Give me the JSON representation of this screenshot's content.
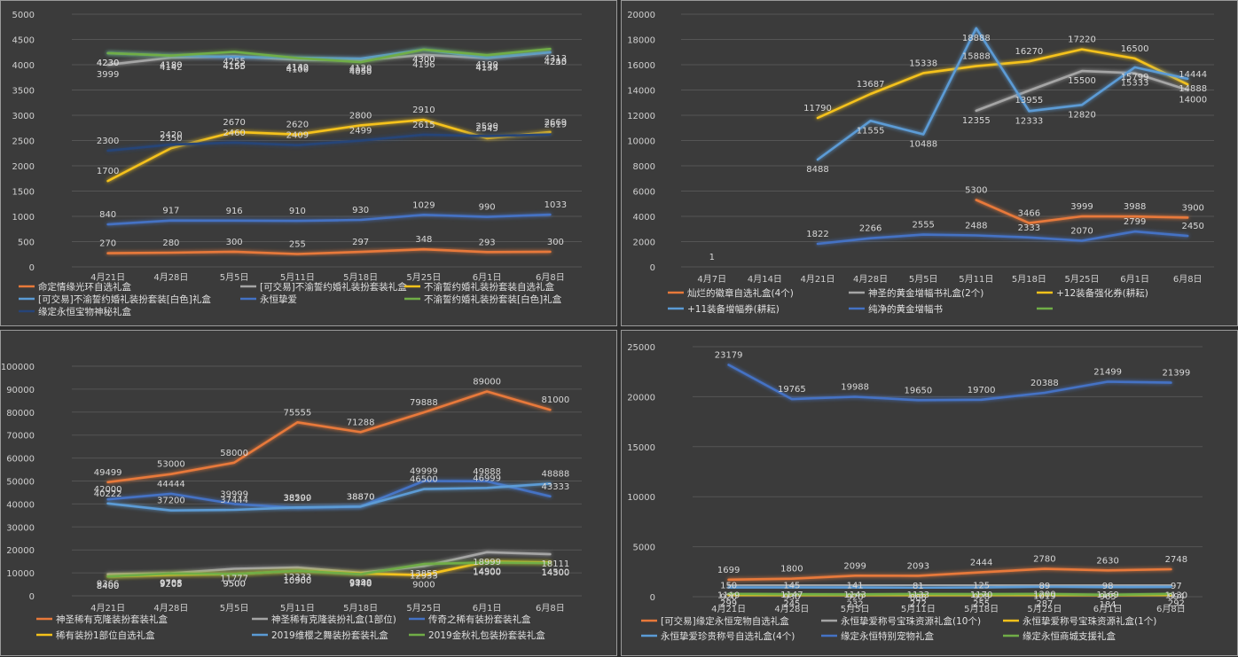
{
  "chart_data": [
    {
      "type": "line",
      "categories": [
        "4月21日",
        "4月28日",
        "5月5日",
        "5月11日",
        "5月18日",
        "5月25日",
        "6月1日",
        "6月8日"
      ],
      "ylim": [
        0,
        5000
      ],
      "yticks": [
        0,
        500,
        1000,
        1500,
        2000,
        2500,
        3000,
        3500,
        4000,
        4500,
        5000
      ],
      "legend_position": "bottom",
      "grid": true,
      "series": [
        {
          "name": "命定情缘光环自选礼盒",
          "color": "#e8793a",
          "values": [
            270,
            280,
            300,
            255,
            297,
            348,
            293,
            300
          ]
        },
        {
          "name": "[可交易]不渝誓约婚礼装扮套装礼盒",
          "color": "#a5a5a5",
          "values": [
            3999,
            4142,
            4166,
            4100,
            4088,
            4196,
            4133,
            4245
          ]
        },
        {
          "name": "不渝誓约婚礼装扮套装自选礼盒",
          "color": "#f5c21b",
          "values": [
            1700,
            2350,
            2670,
            2620,
            2800,
            2910,
            2545,
            2669
          ]
        },
        {
          "name": "[可交易]不渝誓约婚礼装扮套装[白色]礼盒",
          "color": "#5b9bd5",
          "values": [
            4230,
            4180,
            4155,
            4140,
            4120,
            4300,
            4144,
            4250
          ]
        },
        {
          "name": "永恒挚爱",
          "color": "#4472c4",
          "values": [
            840,
            917,
            916,
            910,
            930,
            1029,
            990,
            1033
          ]
        },
        {
          "name": "不渝誓约婚礼装扮套装[白色]礼盒",
          "color": "#70ad47",
          "values": [
            4230,
            4180,
            4255,
            4132,
            4050,
            4300,
            4190,
            4313
          ]
        },
        {
          "name": "缘定永恒宝物神秘礼盒",
          "color": "#264478",
          "values": [
            2300,
            2420,
            2460,
            2409,
            2499,
            2615,
            2590,
            2619
          ]
        }
      ]
    },
    {
      "type": "line",
      "categories": [
        "4月7日",
        "4月14日",
        "4月21日",
        "4月28日",
        "5月5日",
        "5月11日",
        "5月18日",
        "5月25日",
        "6月1日",
        "6月8日"
      ],
      "ylim": [
        0,
        20000
      ],
      "yticks": [
        0,
        2000,
        4000,
        6000,
        8000,
        10000,
        12000,
        14000,
        16000,
        18000,
        20000
      ],
      "legend_position": "bottom",
      "grid": true,
      "series": [
        {
          "name": "灿烂的徽章自选礼盒(4个)",
          "color": "#e8793a",
          "values": [
            null,
            null,
            null,
            null,
            null,
            5300,
            3466,
            3999,
            3988,
            3900
          ]
        },
        {
          "name": "神圣的黄金增幅书礼盒(2个)",
          "color": "#a5a5a5",
          "values": [
            null,
            null,
            null,
            null,
            null,
            12355,
            13955,
            15500,
            15333,
            14000
          ]
        },
        {
          "name": "+12装备强化券(耕耘)",
          "color": "#f5c21b",
          "values": [
            null,
            null,
            11790,
            13687,
            15338,
            15888,
            16270,
            17220,
            16500,
            14444
          ]
        },
        {
          "name": "+11装备增幅券(耕耘)",
          "color": "#5b9bd5",
          "values": [
            null,
            null,
            8488,
            11555,
            10488,
            18888,
            12333,
            12820,
            15799,
            14888
          ]
        },
        {
          "name": "纯净的黄金增幅书",
          "color": "#4472c4",
          "values": [
            1,
            null,
            1822,
            2266,
            2555,
            2488,
            2333,
            2070,
            2799,
            2450
          ]
        },
        {
          "name": "",
          "color": "#70ad47",
          "values": [
            null,
            null,
            null,
            null,
            null,
            null,
            null,
            null,
            null,
            null
          ]
        }
      ]
    },
    {
      "type": "line",
      "categories": [
        "4月21日",
        "4月28日",
        "5月5日",
        "5月11日",
        "5月18日",
        "5月25日",
        "6月1日",
        "6月8日"
      ],
      "ylim": [
        0,
        100000
      ],
      "yticks": [
        0,
        10000,
        20000,
        30000,
        40000,
        50000,
        60000,
        70000,
        80000,
        90000,
        100000
      ],
      "legend_position": "bottom",
      "grid": true,
      "series": [
        {
          "name": "神圣稀有克隆装扮套装礼盒",
          "color": "#e8793a",
          "values": [
            49499,
            53000,
            58000,
            75555,
            71288,
            79888,
            89000,
            81000
          ]
        },
        {
          "name": "神圣稀有克隆装扮礼盒(1部位)",
          "color": "#a5a5a5",
          "values": [
            9366,
            9788,
            11777,
            12333,
            9990,
            12933,
            18999,
            18111
          ]
        },
        {
          "name": "传奇之稀有装扮套装礼盒",
          "color": "#4472c4",
          "values": [
            42000,
            44444,
            39999,
            38299,
            38870,
            49999,
            49888,
            43333
          ]
        },
        {
          "name": "稀有装扮1部位自选礼盒",
          "color": "#f5c21b",
          "values": [
            8400,
            9205,
            9500,
            10900,
            9748,
            9000,
            14900,
            14500
          ]
        },
        {
          "name": "2019维樱之舞装扮套装礼盒",
          "color": "#5b9bd5",
          "values": [
            40222,
            37200,
            37444,
            38500,
            38870,
            46500,
            46999,
            48888
          ]
        },
        {
          "name": "2019金秋礼包装扮套装礼盒",
          "color": "#70ad47",
          "values": [
            8400,
            9705,
            9500,
            10900,
            9440,
            13855,
            14500,
            14300
          ]
        }
      ]
    },
    {
      "type": "line",
      "categories": [
        "4月21日",
        "4月28日",
        "5月5日",
        "5月11日",
        "5月18日",
        "5月25日",
        "6月1日",
        "6月8日"
      ],
      "ylim": [
        0,
        25000
      ],
      "yticks": [
        0,
        5000,
        10000,
        15000,
        20000,
        25000
      ],
      "legend_position": "bottom",
      "grid": true,
      "series": [
        {
          "name": "[可交易]缘定永恒宠物自选礼盒",
          "color": "#e8793a",
          "values": [
            1699,
            1800,
            2099,
            2093,
            2444,
            2780,
            2630,
            2748
          ]
        },
        {
          "name": "永恒挚爱称号宝珠资源礼盒(10个)",
          "color": "#a5a5a5",
          "values": [
            1119,
            1147,
            1143,
            1133,
            1170,
            1200,
            1169,
            1130
          ]
        },
        {
          "name": "永恒挚爱称号宝珠资源礼盒(1个)",
          "color": "#f5c21b",
          "values": [
            150,
            145,
            141,
            81,
            125,
            89,
            98,
            97
          ]
        },
        {
          "name": "永恒挚爱珍贵称号自选礼盒(4个)",
          "color": "#5b9bd5",
          "values": [
            920,
            930,
            920,
            888,
            928,
            1019,
            965,
            994
          ]
        },
        {
          "name": "缘定永恒特别宠物礼盒",
          "color": "#4472c4",
          "values": [
            23179,
            19765,
            19988,
            19650,
            19700,
            20388,
            21499,
            21399
          ]
        },
        {
          "name": "缘定永恒商城支援礼盒",
          "color": "#70ad47",
          "values": [
            299,
            245,
            232,
            272,
            255,
            287,
            184,
            292
          ]
        }
      ]
    }
  ]
}
